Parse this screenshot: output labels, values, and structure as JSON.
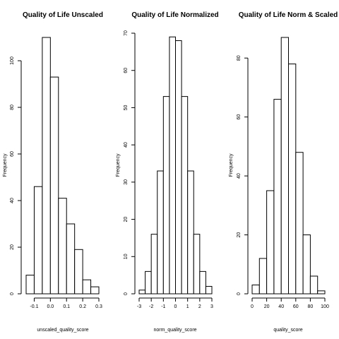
{
  "chart_data": [
    {
      "type": "bar",
      "title": "Quality of Life Unscaled",
      "xlabel": "unscaled_quality_score",
      "ylabel": "Frequency",
      "bin_edges": [
        -0.15,
        -0.1,
        -0.05,
        0.0,
        0.05,
        0.1,
        0.15,
        0.2,
        0.25,
        0.3
      ],
      "values": [
        8,
        46,
        110,
        93,
        41,
        30,
        19,
        6,
        3
      ],
      "xticks": [
        -0.1,
        0.0,
        0.1,
        0.2,
        0.3
      ],
      "xtick_labels": [
        "-0.1",
        "0.0",
        "0.1",
        "0.2",
        "0.3"
      ],
      "yticks": [
        0,
        20,
        40,
        60,
        80,
        100
      ],
      "ytick_labels": [
        "0",
        "20",
        "40",
        "60",
        "80",
        "100"
      ],
      "xlim": [
        -0.15,
        0.3
      ],
      "ylim": [
        0,
        110
      ]
    },
    {
      "type": "bar",
      "title": "Quality of Life Normalized",
      "xlabel": "norm_quality_score",
      "ylabel": "Frequency",
      "bin_edges": [
        -3,
        -2.5,
        -2,
        -1.5,
        -1,
        -0.5,
        0,
        0.5,
        1,
        1.5,
        2,
        2.5,
        3
      ],
      "values": [
        1,
        6,
        16,
        33,
        53,
        69,
        68,
        53,
        33,
        16,
        6,
        2
      ],
      "xticks": [
        -3,
        -2,
        -1,
        0,
        1,
        2,
        3
      ],
      "xtick_labels": [
        "-3",
        "-2",
        "-1",
        "0",
        "1",
        "2",
        "3"
      ],
      "yticks": [
        0,
        10,
        20,
        30,
        40,
        50,
        60,
        70
      ],
      "ytick_labels": [
        "0",
        "10",
        "20",
        "30",
        "40",
        "50",
        "60",
        "70"
      ],
      "xlim": [
        -3,
        3
      ],
      "ylim": [
        0,
        70
      ]
    },
    {
      "type": "bar",
      "title": "Quality of Life Norm & Scaled",
      "xlabel": "quality_score",
      "ylabel": "Frequency",
      "bin_edges": [
        0,
        10,
        20,
        30,
        40,
        50,
        60,
        70,
        80,
        90,
        100
      ],
      "values": [
        3,
        12,
        35,
        66,
        87,
        78,
        48,
        20,
        6,
        1
      ],
      "xticks": [
        0,
        20,
        40,
        60,
        80,
        100
      ],
      "xtick_labels": [
        "0",
        "20",
        "40",
        "60",
        "80",
        "100"
      ],
      "yticks": [
        0,
        20,
        40,
        60,
        80
      ],
      "ytick_labels": [
        "0",
        "20",
        "40",
        "60",
        "80"
      ],
      "xlim": [
        0,
        100
      ],
      "ylim": [
        0,
        87
      ]
    }
  ]
}
